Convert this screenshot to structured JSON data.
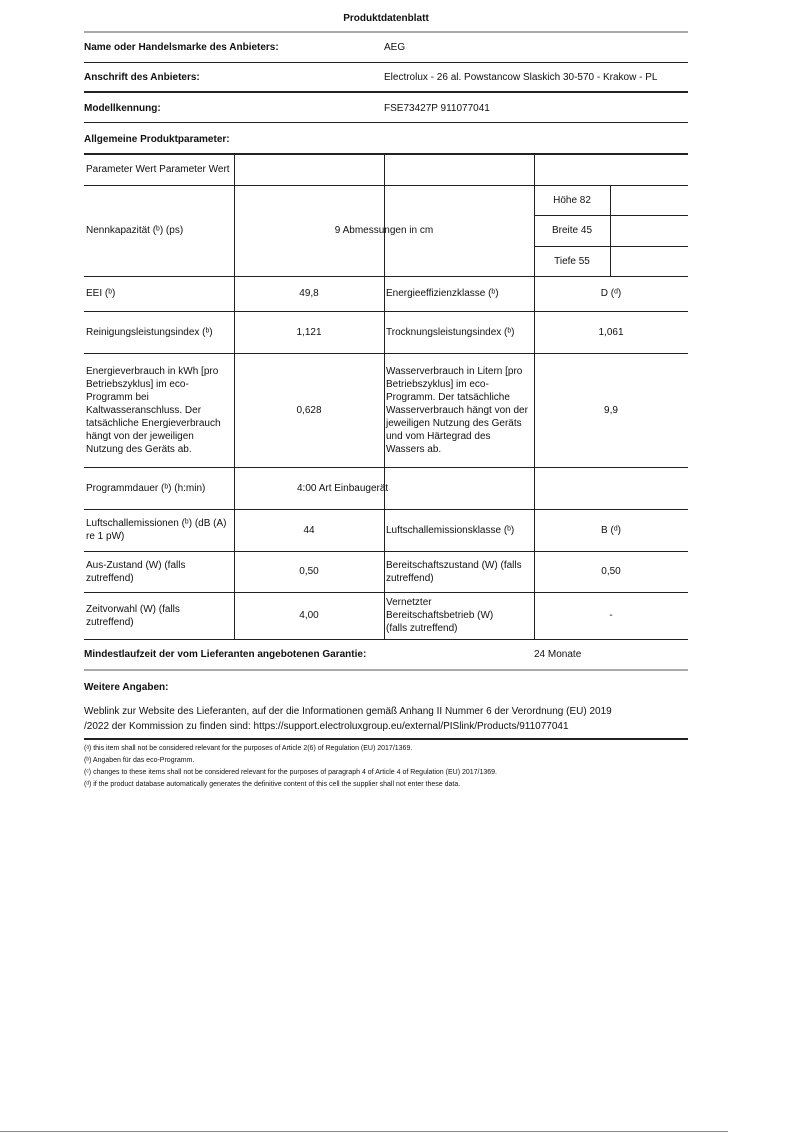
{
  "title": "Produktdatenblatt",
  "supplier": {
    "name_label": "Name oder Handelsmarke des Anbieters:",
    "name_value": "AEG",
    "address_label": "Anschrift des Anbieters:",
    "address_value": "Electrolux - 26 al. Powstancow Slaskich 30-570 - Krakow - PL",
    "model_label": "Modellkennung:",
    "model_value": "FSE73427P 911077041"
  },
  "general_heading": "Allgemeine Produktparameter:",
  "table": {
    "header": "Parameter Wert Parameter Wert",
    "capacity_label": "Nennkapazität (ᵇ) (ps)",
    "capacity_value": "9 Abmessungen in cm",
    "height": "Höhe 82",
    "width": "Breite 45",
    "depth": "Tiefe 55",
    "eei_label": "EEI (ᵇ)",
    "eei_value": "49,8",
    "energy_class_label": "Energieeffizienzklasse (ᵇ)",
    "energy_class_value": "D (ᵈ)",
    "cleaning_label": "Reinigungsleistungsindex (ᵇ)",
    "cleaning_value": "1,121",
    "drying_label": "Trocknungsleistungsindex (ᵇ)",
    "drying_value": "1,061",
    "energy_label": "Energieverbrauch in kWh [pro Betriebszyklus] im eco-Programm bei Kaltwasseranschluss. Der tatsächliche Energieverbrauch hängt von der jeweiligen Nutzung des Geräts ab.",
    "energy_value": "0,628",
    "water_label": "Wasserverbrauch in Litern [pro Betriebszyklus] im eco-Programm. Der tatsächliche Wasserverbrauch hängt von der jeweiligen Nutzung des Geräts und vom Härtegrad des Wassers ab.",
    "water_value": "9,9",
    "duration_label": "Programmdauer (ᵇ) (h:min)",
    "duration_value": "4:00 Art Einbaugerät",
    "noise_label": "Luftschallemissionen (ᵇ) (dB (A) re 1 pW)",
    "noise_value": "44",
    "noise_class_label": "Luftschallemissionsklasse (ᵇ)",
    "noise_class_value": "B (ᵈ)",
    "off_label": "Aus-Zustand (W) (falls zutreffend)",
    "off_value": "0,50",
    "standby_label": "Bereitschaftszustand (W) (falls zutreffend)",
    "standby_value": "0,50",
    "delay_label": "Zeitvorwahl (W) (falls zutreffend)",
    "delay_value": "4,00",
    "networked_label": "Vernetzter Bereitschaftsbetrieb (W) (falls zutreffend)",
    "networked_value": "-"
  },
  "warranty_label": "Mindestlaufzeit der vom Lieferanten angebotenen Garantie:",
  "warranty_value": "24 Monate",
  "further_heading": "Weitere Angaben:",
  "weblink_line1": "Weblink zur Website des Lieferanten, auf der die Informationen gemäß Anhang II Nummer 6 der Verordnung (EU) 2019",
  "weblink_line2": "/2022 der Kommission zu finden sind: https://support.electroluxgroup.eu/external/PISlink/Products/911077041",
  "footnotes": [
    "(ᵃ) this item shall not be considered relevant for the purposes of Article 2(6) of Regulation (EU) 2017/1369.",
    "(ᵇ) Angaben für das eco-Programm.",
    "(ᶜ) changes to these items shall not be considered relevant for the purposes of paragraph 4 of Article 4 of Regulation (EU) 2017/1369.",
    "(ᵈ) if the product database automatically generates the definitive content of this cell the supplier shall not enter these data."
  ]
}
